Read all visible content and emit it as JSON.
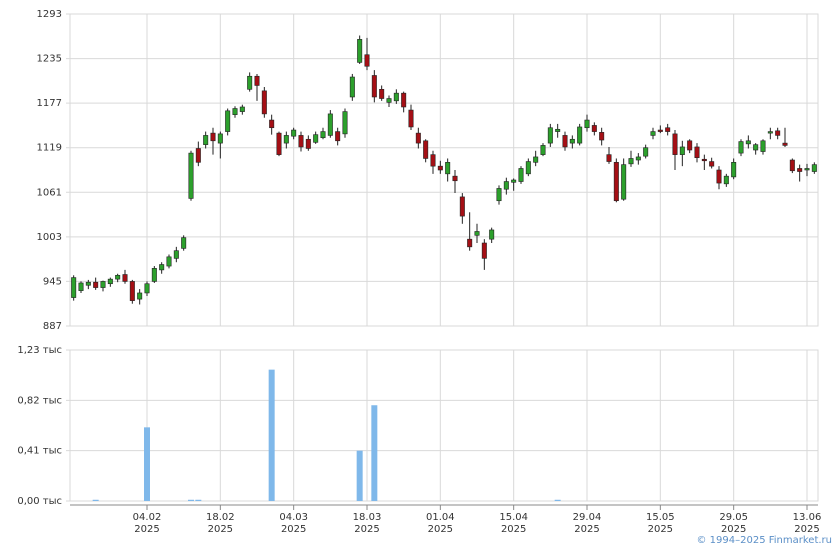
{
  "copyright": "© 1994–2025 Finmarket.ru",
  "colors": {
    "up": "#2ca02c",
    "down": "#a50f15",
    "wick": "#222222",
    "volume": "#7fb8ea",
    "grid": "#d9d9d9",
    "axis": "#888888"
  },
  "chart_data": [
    {
      "type": "candlestick",
      "title": "",
      "ylim": [
        887,
        1293
      ],
      "yticks": [
        "887",
        "945",
        "1003",
        "1061",
        "1119",
        "1177",
        "1235",
        "1293"
      ],
      "xticks": [
        {
          "date": "04.02",
          "year": "2025",
          "idx": 10
        },
        {
          "date": "18.02",
          "year": "2025",
          "idx": 20
        },
        {
          "date": "04.03",
          "year": "2025",
          "idx": 30
        },
        {
          "date": "18.03",
          "year": "2025",
          "idx": 40
        },
        {
          "date": "01.04",
          "year": "2025",
          "idx": 50
        },
        {
          "date": "15.04",
          "year": "2025",
          "idx": 60
        },
        {
          "date": "29.04",
          "year": "2025",
          "idx": 70
        },
        {
          "date": "15.05",
          "year": "2025",
          "idx": 80
        },
        {
          "date": "29.05",
          "year": "2025",
          "idx": 90
        },
        {
          "date": "13.06",
          "year": "2025",
          "idx": 100
        }
      ],
      "ohlc": [
        [
          924,
          953,
          920,
          950
        ],
        [
          933,
          945,
          930,
          943
        ],
        [
          940,
          947,
          935,
          944
        ],
        [
          944,
          950,
          934,
          937
        ],
        [
          937,
          946,
          932,
          945
        ],
        [
          942,
          950,
          938,
          948
        ],
        [
          948,
          955,
          944,
          953
        ],
        [
          954,
          960,
          942,
          945
        ],
        [
          945,
          947,
          916,
          920
        ],
        [
          922,
          935,
          915,
          930
        ],
        [
          930,
          945,
          926,
          942
        ],
        [
          945,
          965,
          943,
          962
        ],
        [
          960,
          970,
          955,
          967
        ],
        [
          965,
          980,
          962,
          977
        ],
        [
          975,
          990,
          970,
          985
        ],
        [
          988,
          1005,
          985,
          1002
        ],
        [
          1053,
          1115,
          1050,
          1112
        ],
        [
          1118,
          1127,
          1095,
          1100
        ],
        [
          1123,
          1140,
          1118,
          1135
        ],
        [
          1138,
          1145,
          1110,
          1128
        ],
        [
          1125,
          1140,
          1105,
          1137
        ],
        [
          1140,
          1170,
          1135,
          1167
        ],
        [
          1162,
          1173,
          1158,
          1170
        ],
        [
          1166,
          1175,
          1162,
          1172
        ],
        [
          1195,
          1217,
          1192,
          1212
        ],
        [
          1212,
          1215,
          1180,
          1200
        ],
        [
          1193,
          1198,
          1158,
          1163
        ],
        [
          1155,
          1162,
          1136,
          1145
        ],
        [
          1138,
          1140,
          1108,
          1110
        ],
        [
          1125,
          1140,
          1118,
          1135
        ],
        [
          1134,
          1145,
          1130,
          1142
        ],
        [
          1135,
          1140,
          1114,
          1120
        ],
        [
          1130,
          1135,
          1115,
          1118
        ],
        [
          1126,
          1140,
          1124,
          1136
        ],
        [
          1132,
          1145,
          1130,
          1140
        ],
        [
          1135,
          1168,
          1132,
          1163
        ],
        [
          1140,
          1145,
          1122,
          1128
        ],
        [
          1137,
          1170,
          1132,
          1166
        ],
        [
          1185,
          1215,
          1180,
          1211
        ],
        [
          1230,
          1265,
          1228,
          1260
        ],
        [
          1240,
          1262,
          1220,
          1225
        ],
        [
          1213,
          1220,
          1178,
          1185
        ],
        [
          1195,
          1200,
          1180,
          1183
        ],
        [
          1178,
          1187,
          1172,
          1183
        ],
        [
          1180,
          1195,
          1176,
          1190
        ],
        [
          1190,
          1192,
          1165,
          1172
        ],
        [
          1168,
          1175,
          1142,
          1146
        ],
        [
          1138,
          1145,
          1118,
          1125
        ],
        [
          1128,
          1130,
          1100,
          1105
        ],
        [
          1110,
          1115,
          1085,
          1095
        ],
        [
          1095,
          1102,
          1085,
          1090
        ],
        [
          1085,
          1105,
          1075,
          1100
        ],
        [
          1082,
          1090,
          1060,
          1076
        ],
        [
          1055,
          1060,
          1020,
          1030
        ],
        [
          1000,
          1035,
          985,
          990
        ],
        [
          1005,
          1020,
          995,
          1010
        ],
        [
          995,
          1000,
          960,
          975
        ],
        [
          1000,
          1015,
          995,
          1012
        ],
        [
          1050,
          1070,
          1045,
          1066
        ],
        [
          1065,
          1080,
          1058,
          1075
        ],
        [
          1074,
          1079,
          1063,
          1077
        ],
        [
          1075,
          1095,
          1072,
          1092
        ],
        [
          1085,
          1105,
          1082,
          1101
        ],
        [
          1100,
          1115,
          1095,
          1107
        ],
        [
          1110,
          1125,
          1108,
          1122
        ],
        [
          1125,
          1150,
          1120,
          1145
        ],
        [
          1140,
          1150,
          1132,
          1143
        ],
        [
          1135,
          1140,
          1115,
          1120
        ],
        [
          1125,
          1135,
          1118,
          1130
        ],
        [
          1125,
          1150,
          1122,
          1146
        ],
        [
          1145,
          1162,
          1140,
          1155
        ],
        [
          1148,
          1152,
          1135,
          1140
        ],
        [
          1139,
          1145,
          1122,
          1129
        ],
        [
          1110,
          1120,
          1098,
          1101
        ],
        [
          1100,
          1105,
          1048,
          1050
        ],
        [
          1052,
          1105,
          1050,
          1097
        ],
        [
          1098,
          1115,
          1094,
          1105
        ],
        [
          1103,
          1112,
          1097,
          1107
        ],
        [
          1108,
          1123,
          1105,
          1119
        ],
        [
          1135,
          1145,
          1130,
          1140
        ],
        [
          1142,
          1148,
          1138,
          1140
        ],
        [
          1145,
          1150,
          1135,
          1140
        ],
        [
          1137,
          1142,
          1090,
          1110
        ],
        [
          1110,
          1128,
          1095,
          1120
        ],
        [
          1128,
          1130,
          1112,
          1116
        ],
        [
          1120,
          1125,
          1100,
          1106
        ],
        [
          1104,
          1110,
          1090,
          1102
        ],
        [
          1101,
          1106,
          1092,
          1095
        ],
        [
          1090,
          1095,
          1065,
          1073
        ],
        [
          1072,
          1085,
          1068,
          1082
        ],
        [
          1081,
          1105,
          1078,
          1100
        ],
        [
          1112,
          1130,
          1108,
          1127
        ],
        [
          1124,
          1135,
          1118,
          1128
        ],
        [
          1116,
          1125,
          1110,
          1123
        ],
        [
          1114,
          1130,
          1110,
          1128
        ],
        [
          1138,
          1145,
          1130,
          1140
        ],
        [
          1141,
          1145,
          1130,
          1135
        ],
        [
          1125,
          1145,
          1120,
          1122
        ],
        [
          1103,
          1105,
          1086,
          1089
        ],
        [
          1092,
          1097,
          1075,
          1088
        ],
        [
          1090,
          1098,
          1082,
          1092
        ],
        [
          1088,
          1100,
          1085,
          1097
        ]
      ]
    },
    {
      "type": "bar",
      "title": "",
      "ylim": [
        0,
        1.23
      ],
      "yticks": [
        "0,00 тыс",
        "0,41 тыс",
        "0,82 тыс",
        "1,23 тыс"
      ],
      "unit": "тыс",
      "volumes": [
        {
          "idx": 3,
          "value": 0.01
        },
        {
          "idx": 10,
          "value": 0.6
        },
        {
          "idx": 16,
          "value": 0.01
        },
        {
          "idx": 17,
          "value": 0.01
        },
        {
          "idx": 27,
          "value": 1.07
        },
        {
          "idx": 39,
          "value": 0.41
        },
        {
          "idx": 41,
          "value": 0.78
        },
        {
          "idx": 66,
          "value": 0.01
        }
      ]
    }
  ]
}
